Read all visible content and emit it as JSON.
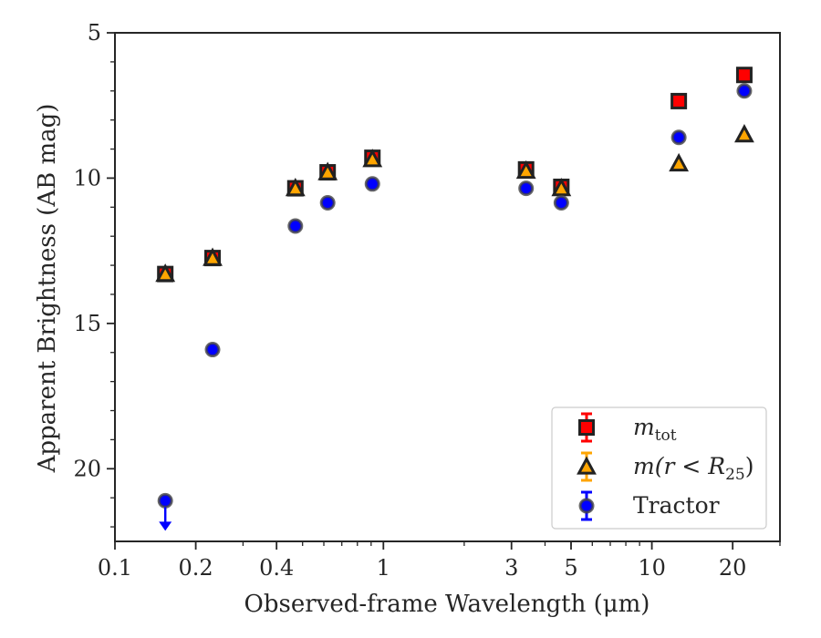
{
  "chart_data": {
    "type": "scatter",
    "xlabel": "Observed-frame Wavelength (μm)",
    "ylabel": "Apparent Brightness (AB mag)",
    "xscale": "log",
    "xlim": [
      0.1,
      30
    ],
    "ylim": [
      22.5,
      5
    ],
    "y_inverted": true,
    "grid": false,
    "legend_position": "bottom-right",
    "x_ticks": [
      {
        "value": 0.1,
        "label": "0.1"
      },
      {
        "value": 0.2,
        "label": "0.2"
      },
      {
        "value": 0.4,
        "label": "0.4"
      },
      {
        "value": 1,
        "label": "1"
      },
      {
        "value": 3,
        "label": "3"
      },
      {
        "value": 5,
        "label": "5"
      },
      {
        "value": 10,
        "label": "10"
      },
      {
        "value": 20,
        "label": "20"
      }
    ],
    "y_ticks": [
      {
        "value": 5,
        "label": "5"
      },
      {
        "value": 10,
        "label": "10"
      },
      {
        "value": 15,
        "label": "15"
      },
      {
        "value": 20,
        "label": "20"
      }
    ],
    "series": [
      {
        "name": "m_tot",
        "legend_main": "m",
        "legend_sub": "tot",
        "marker": "square",
        "color": "#ff0000",
        "edge_color": "#222222",
        "points": [
          {
            "x": 0.154,
            "y": 13.3
          },
          {
            "x": 0.231,
            "y": 12.75
          },
          {
            "x": 0.47,
            "y": 10.35
          },
          {
            "x": 0.62,
            "y": 9.8
          },
          {
            "x": 0.91,
            "y": 9.3
          },
          {
            "x": 3.4,
            "y": 9.7
          },
          {
            "x": 4.6,
            "y": 10.3
          },
          {
            "x": 12.6,
            "y": 7.35
          },
          {
            "x": 22.1,
            "y": 6.45
          }
        ]
      },
      {
        "name": "m(r < R_25)",
        "legend_main": "m(r < R",
        "legend_sub": "25",
        "legend_tail": ")",
        "marker": "triangle",
        "color": "#ffa500",
        "edge_color": "#222222",
        "points": [
          {
            "x": 0.154,
            "y": 13.3
          },
          {
            "x": 0.231,
            "y": 12.75
          },
          {
            "x": 0.47,
            "y": 10.35
          },
          {
            "x": 0.62,
            "y": 9.8
          },
          {
            "x": 0.91,
            "y": 9.35
          },
          {
            "x": 3.4,
            "y": 9.75
          },
          {
            "x": 4.6,
            "y": 10.35
          },
          {
            "x": 12.6,
            "y": 9.5
          },
          {
            "x": 22.1,
            "y": 8.5
          }
        ]
      },
      {
        "name": "Tractor",
        "legend_main": "Tractor",
        "marker": "circle",
        "color": "#0000ff",
        "edge_color": "#444444",
        "points": [
          {
            "x": 0.154,
            "y": 21.1,
            "upper_limit": true
          },
          {
            "x": 0.231,
            "y": 15.9
          },
          {
            "x": 0.47,
            "y": 11.65
          },
          {
            "x": 0.62,
            "y": 10.85
          },
          {
            "x": 0.91,
            "y": 10.2
          },
          {
            "x": 3.4,
            "y": 10.35
          },
          {
            "x": 4.6,
            "y": 10.85
          },
          {
            "x": 12.6,
            "y": 8.6
          },
          {
            "x": 22.1,
            "y": 7.0
          }
        ]
      }
    ]
  }
}
